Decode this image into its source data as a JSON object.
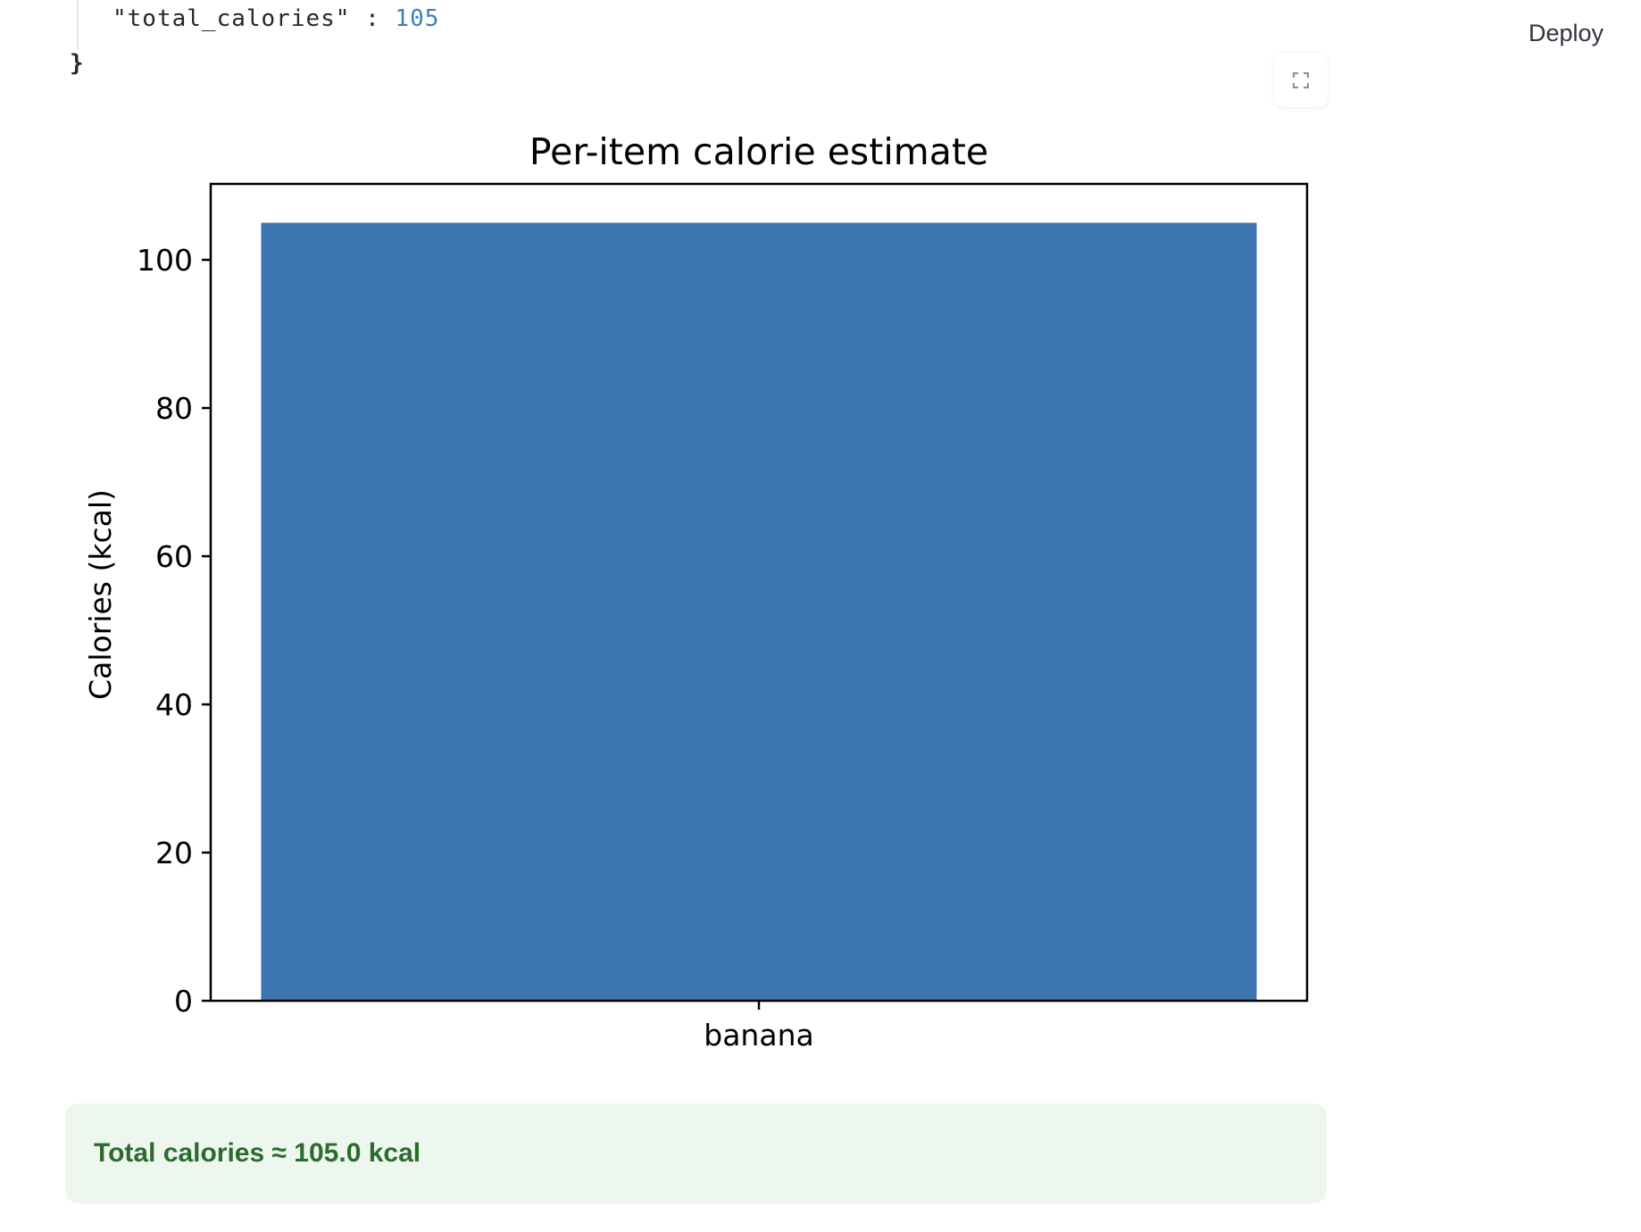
{
  "json_snippet": {
    "key": "\"total_calories\"",
    "colon": ":",
    "value": "105",
    "closing_brace": "}"
  },
  "header": {
    "deploy_label": "Deploy"
  },
  "toolbar": {
    "fullscreen_icon": "fullscreen-icon"
  },
  "chart_data": {
    "type": "bar",
    "title": "Per-item calorie estimate",
    "xlabel": "",
    "ylabel": "Calories (kcal)",
    "categories": [
      "banana"
    ],
    "values": [
      105
    ],
    "ylim": [
      0,
      110.25
    ],
    "yticks": [
      0,
      20,
      40,
      60,
      80,
      100
    ],
    "colors": {
      "bar": "#3b74ae"
    },
    "grid": false
  },
  "status": {
    "message": "Total calories ≈ 105.0 kcal",
    "color": "#2d6a2f",
    "background": "#edf7ee"
  }
}
